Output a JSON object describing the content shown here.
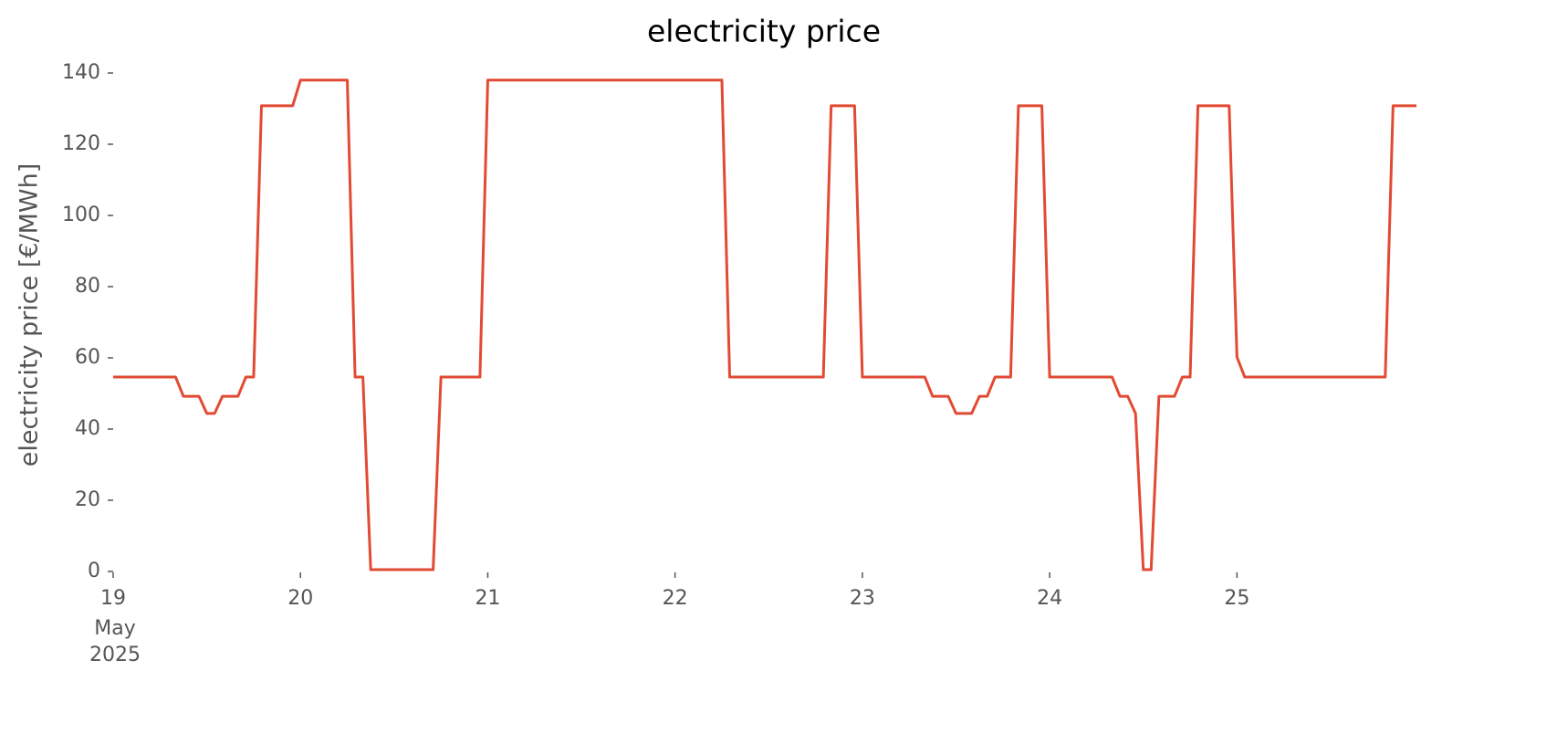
{
  "chart_data": {
    "type": "line",
    "title": "electricity price",
    "ylabel": "electricity price [€/MWh]",
    "x": [
      "2025-05-19T00:00",
      "2025-05-19T01:00",
      "2025-05-19T02:00",
      "2025-05-19T03:00",
      "2025-05-19T04:00",
      "2025-05-19T05:00",
      "2025-05-19T06:00",
      "2025-05-19T07:00",
      "2025-05-19T08:00",
      "2025-05-19T09:00",
      "2025-05-19T10:00",
      "2025-05-19T11:00",
      "2025-05-19T12:00",
      "2025-05-19T13:00",
      "2025-05-19T14:00",
      "2025-05-19T15:00",
      "2025-05-19T16:00",
      "2025-05-19T17:00",
      "2025-05-19T18:00",
      "2025-05-19T19:00",
      "2025-05-19T20:00",
      "2025-05-19T21:00",
      "2025-05-19T22:00",
      "2025-05-19T23:00",
      "2025-05-20T00:00",
      "2025-05-20T01:00",
      "2025-05-20T02:00",
      "2025-05-20T03:00",
      "2025-05-20T04:00",
      "2025-05-20T05:00",
      "2025-05-20T06:00",
      "2025-05-20T07:00",
      "2025-05-20T08:00",
      "2025-05-20T09:00",
      "2025-05-20T10:00",
      "2025-05-20T11:00",
      "2025-05-20T12:00",
      "2025-05-20T13:00",
      "2025-05-20T14:00",
      "2025-05-20T15:00",
      "2025-05-20T16:00",
      "2025-05-20T17:00",
      "2025-05-20T18:00",
      "2025-05-20T19:00",
      "2025-05-20T20:00",
      "2025-05-20T21:00",
      "2025-05-20T22:00",
      "2025-05-20T23:00",
      "2025-05-21T00:00",
      "2025-05-21T01:00",
      "2025-05-21T02:00",
      "2025-05-21T03:00",
      "2025-05-21T04:00",
      "2025-05-21T05:00",
      "2025-05-21T06:00",
      "2025-05-21T07:00",
      "2025-05-21T08:00",
      "2025-05-21T09:00",
      "2025-05-21T10:00",
      "2025-05-21T11:00",
      "2025-05-21T12:00",
      "2025-05-21T13:00",
      "2025-05-21T14:00",
      "2025-05-21T15:00",
      "2025-05-21T16:00",
      "2025-05-21T17:00",
      "2025-05-21T18:00",
      "2025-05-21T19:00",
      "2025-05-21T20:00",
      "2025-05-21T21:00",
      "2025-05-21T22:00",
      "2025-05-21T23:00",
      "2025-05-22T00:00",
      "2025-05-22T01:00",
      "2025-05-22T02:00",
      "2025-05-22T03:00",
      "2025-05-22T04:00",
      "2025-05-22T05:00",
      "2025-05-22T06:00",
      "2025-05-22T07:00",
      "2025-05-22T08:00",
      "2025-05-22T09:00",
      "2025-05-22T10:00",
      "2025-05-22T11:00",
      "2025-05-22T12:00",
      "2025-05-22T13:00",
      "2025-05-22T14:00",
      "2025-05-22T15:00",
      "2025-05-22T16:00",
      "2025-05-22T17:00",
      "2025-05-22T18:00",
      "2025-05-22T19:00",
      "2025-05-22T20:00",
      "2025-05-22T21:00",
      "2025-05-22T22:00",
      "2025-05-22T23:00",
      "2025-05-23T00:00",
      "2025-05-23T01:00",
      "2025-05-23T02:00",
      "2025-05-23T03:00",
      "2025-05-23T04:00",
      "2025-05-23T05:00",
      "2025-05-23T06:00",
      "2025-05-23T07:00",
      "2025-05-23T08:00",
      "2025-05-23T09:00",
      "2025-05-23T10:00",
      "2025-05-23T11:00",
      "2025-05-23T12:00",
      "2025-05-23T13:00",
      "2025-05-23T14:00",
      "2025-05-23T15:00",
      "2025-05-23T16:00",
      "2025-05-23T17:00",
      "2025-05-23T18:00",
      "2025-05-23T19:00",
      "2025-05-23T20:00",
      "2025-05-23T21:00",
      "2025-05-23T22:00",
      "2025-05-23T23:00",
      "2025-05-24T00:00",
      "2025-05-24T01:00",
      "2025-05-24T02:00",
      "2025-05-24T03:00",
      "2025-05-24T04:00",
      "2025-05-24T05:00",
      "2025-05-24T06:00",
      "2025-05-24T07:00",
      "2025-05-24T08:00",
      "2025-05-24T09:00",
      "2025-05-24T10:00",
      "2025-05-24T11:00",
      "2025-05-24T12:00",
      "2025-05-24T13:00",
      "2025-05-24T14:00",
      "2025-05-24T15:00",
      "2025-05-24T16:00",
      "2025-05-24T17:00",
      "2025-05-24T18:00",
      "2025-05-24T19:00",
      "2025-05-24T20:00",
      "2025-05-24T21:00",
      "2025-05-24T22:00",
      "2025-05-24T23:00",
      "2025-05-25T00:00",
      "2025-05-25T01:00",
      "2025-05-25T02:00",
      "2025-05-25T03:00",
      "2025-05-25T04:00",
      "2025-05-25T05:00",
      "2025-05-25T06:00",
      "2025-05-25T07:00",
      "2025-05-25T08:00",
      "2025-05-25T09:00",
      "2025-05-25T10:00",
      "2025-05-25T11:00",
      "2025-05-25T12:00",
      "2025-05-25T13:00",
      "2025-05-25T14:00",
      "2025-05-25T15:00",
      "2025-05-25T16:00",
      "2025-05-25T17:00",
      "2025-05-25T18:00",
      "2025-05-25T19:00",
      "2025-05-25T20:00",
      "2025-05-25T21:00",
      "2025-05-25T22:00",
      "2025-05-25T23:00"
    ],
    "series": [
      {
        "name": "electricity price",
        "color": "#e24a33",
        "values": [
          54.6,
          54.6,
          54.6,
          54.6,
          54.6,
          54.6,
          54.6,
          54.6,
          54.6,
          49.2,
          49.2,
          49.2,
          44.4,
          44.4,
          49.2,
          49.2,
          49.2,
          54.6,
          54.6,
          130.8,
          130.8,
          130.8,
          130.8,
          130.8,
          138,
          138,
          138,
          138,
          138,
          138,
          138,
          54.6,
          54.6,
          0.5,
          0.5,
          0.5,
          0.5,
          0.5,
          0.5,
          0.5,
          0.5,
          0.5,
          54.6,
          54.6,
          54.6,
          54.6,
          54.6,
          54.6,
          138,
          138,
          138,
          138,
          138,
          138,
          138,
          138,
          138,
          138,
          138,
          138,
          138,
          138,
          138,
          138,
          138,
          138,
          138,
          138,
          138,
          138,
          138,
          138,
          138,
          138,
          138,
          138,
          138,
          138,
          138,
          54.6,
          54.6,
          54.6,
          54.6,
          54.6,
          54.6,
          54.6,
          54.6,
          54.6,
          54.6,
          54.6,
          54.6,
          54.6,
          130.8,
          130.8,
          130.8,
          130.8,
          54.6,
          54.6,
          54.6,
          54.6,
          54.6,
          54.6,
          54.6,
          54.6,
          54.6,
          49.2,
          49.2,
          49.2,
          44.4,
          44.4,
          44.4,
          49.2,
          49.2,
          54.6,
          54.6,
          54.6,
          130.8,
          130.8,
          130.8,
          130.8,
          54.6,
          54.6,
          54.6,
          54.6,
          54.6,
          54.6,
          54.6,
          54.6,
          54.6,
          49.2,
          49.2,
          44.4,
          0.5,
          0.5,
          49.2,
          49.2,
          49.2,
          54.6,
          54.6,
          130.8,
          130.8,
          130.8,
          130.8,
          130.8,
          60.2,
          54.6,
          54.6,
          54.6,
          54.6,
          54.6,
          54.6,
          54.6,
          54.6,
          54.6,
          54.6,
          54.6,
          54.6,
          54.6,
          54.6,
          54.6,
          54.6,
          54.6,
          54.6,
          54.6,
          130.8,
          130.8,
          130.8,
          130.8
        ]
      }
    ],
    "xlim": [
      "2025-05-19T00:00",
      "2025-05-25T23:00"
    ],
    "xticks": [
      {
        "value": "2025-05-19T00:00",
        "label": "19"
      },
      {
        "value": "2025-05-20T00:00",
        "label": "20"
      },
      {
        "value": "2025-05-21T00:00",
        "label": "21"
      },
      {
        "value": "2025-05-22T00:00",
        "label": "22"
      },
      {
        "value": "2025-05-23T00:00",
        "label": "23"
      },
      {
        "value": "2025-05-24T00:00",
        "label": "24"
      },
      {
        "value": "2025-05-25T00:00",
        "label": "25"
      }
    ],
    "month_label": "May",
    "year_label": "2025",
    "ylim": [
      0,
      140
    ],
    "yticks": [
      0,
      20,
      40,
      60,
      80,
      100,
      120,
      140
    ],
    "grid": false
  }
}
